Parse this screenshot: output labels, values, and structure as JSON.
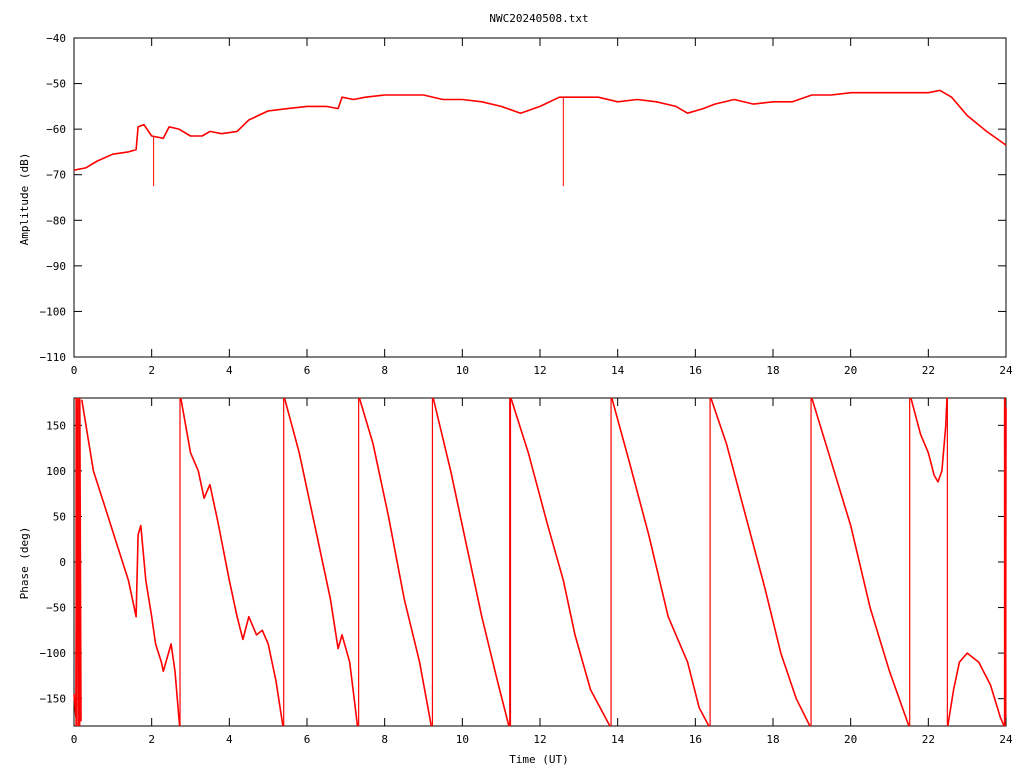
{
  "title": "NWC20240508.txt",
  "colors": {
    "trace": "#ff0000",
    "axis": "#000000",
    "background": "#ffffff"
  },
  "chart_data": [
    {
      "type": "line",
      "ylabel": "Amplitude (dB)",
      "xlabel": "",
      "xlim": [
        0,
        24
      ],
      "ylim": [
        -110,
        -40
      ],
      "xticks": [
        0,
        2,
        4,
        6,
        8,
        10,
        12,
        14,
        16,
        18,
        20,
        22,
        24
      ],
      "yticks": [
        -110,
        -100,
        -90,
        -80,
        -70,
        -60,
        -50,
        -40
      ],
      "grid": false,
      "series": [
        {
          "x": [
            0,
            0.3,
            0.6,
            1.0,
            1.4,
            1.6,
            1.65,
            1.8,
            2.0,
            2.3,
            2.45,
            2.7,
            3.0,
            3.3,
            3.5,
            3.8,
            4.2,
            4.5,
            5.0,
            5.5,
            6.0,
            6.5,
            6.8,
            6.9,
            7.2,
            7.5,
            8.0,
            8.5,
            9.0,
            9.5,
            10.0,
            10.5,
            11.0,
            11.5,
            12.0,
            12.5,
            13.0,
            13.5,
            14.0,
            14.5,
            15.0,
            15.5,
            15.8,
            16.2,
            16.5,
            17.0,
            17.5,
            18.0,
            18.5,
            19.0,
            19.5,
            20.0,
            20.5,
            21.0,
            21.5,
            22.0,
            22.3,
            22.6,
            23.0,
            23.5,
            24.0
          ],
          "values": [
            -69,
            -68.5,
            -67,
            -65.5,
            -65,
            -64.5,
            -59.5,
            -59,
            -61.5,
            -62,
            -59.5,
            -60,
            -61.5,
            -61.5,
            -60.5,
            -61,
            -60.5,
            -58,
            -56,
            -55.5,
            -55,
            -55,
            -55.5,
            -53,
            -53.5,
            -53,
            -52.5,
            -52.5,
            -52.5,
            -53.5,
            -53.5,
            -54,
            -55,
            -56.5,
            -55,
            -53,
            -53,
            -53,
            -54,
            -53.5,
            -54,
            -55,
            -56.5,
            -55.5,
            -54.5,
            -53.5,
            -54.5,
            -54,
            -54,
            -52.5,
            -52.5,
            -52,
            -52,
            -52,
            -52,
            -52,
            -51.5,
            -53,
            -57,
            -60.5,
            -63.5
          ],
          "spikes": [
            {
              "x": 2.05,
              "min": -72.5
            },
            {
              "x": 12.6,
              "min": -72.5
            }
          ]
        }
      ]
    },
    {
      "type": "line",
      "ylabel": "Phase (deg)",
      "xlabel": "Time (UT)",
      "xlim": [
        0,
        24
      ],
      "ylim": [
        -180,
        180
      ],
      "xticks": [
        0,
        2,
        4,
        6,
        8,
        10,
        12,
        14,
        16,
        18,
        20,
        22,
        24
      ],
      "yticks": [
        -150,
        -100,
        -50,
        0,
        50,
        100,
        150
      ],
      "grid": false,
      "series": [
        {
          "segments": [
            [
              [
                0,
                -145
              ],
              [
                0.05,
                -170
              ],
              [
                0.08,
                178
              ],
              [
                0.12,
                -178
              ],
              [
                0.15,
                178
              ],
              [
                0.18,
                -175
              ]
            ],
            [
              [
                0.2,
                178
              ],
              [
                0.5,
                100
              ],
              [
                0.8,
                60
              ],
              [
                1.1,
                20
              ],
              [
                1.4,
                -20
              ],
              [
                1.55,
                -50
              ],
              [
                1.6,
                -60
              ],
              [
                1.65,
                30
              ],
              [
                1.72,
                40
              ],
              [
                1.85,
                -20
              ],
              [
                2.0,
                -60
              ],
              [
                2.1,
                -90
              ],
              [
                2.25,
                -110
              ],
              [
                2.3,
                -120
              ],
              [
                2.5,
                -90
              ],
              [
                2.6,
                -120
              ],
              [
                2.72,
                -180
              ]
            ],
            [
              [
                2.75,
                180
              ],
              [
                3.0,
                120
              ],
              [
                3.2,
                100
              ],
              [
                3.35,
                70
              ],
              [
                3.5,
                85
              ],
              [
                3.7,
                45
              ],
              [
                4.0,
                -20
              ],
              [
                4.2,
                -60
              ],
              [
                4.35,
                -85
              ],
              [
                4.5,
                -60
              ],
              [
                4.7,
                -80
              ],
              [
                4.85,
                -75
              ],
              [
                5.0,
                -90
              ],
              [
                5.2,
                -130
              ],
              [
                5.38,
                -180
              ]
            ],
            [
              [
                5.42,
                180
              ],
              [
                5.8,
                120
              ],
              [
                6.2,
                40
              ],
              [
                6.6,
                -40
              ],
              [
                6.8,
                -95
              ],
              [
                6.9,
                -80
              ],
              [
                7.1,
                -110
              ],
              [
                7.3,
                -180
              ]
            ],
            [
              [
                7.35,
                180
              ],
              [
                7.7,
                130
              ],
              [
                8.1,
                50
              ],
              [
                8.5,
                -40
              ],
              [
                8.9,
                -110
              ],
              [
                9.2,
                -180
              ]
            ],
            [
              [
                9.25,
                180
              ],
              [
                9.7,
                100
              ],
              [
                10.1,
                20
              ],
              [
                10.5,
                -60
              ],
              [
                10.9,
                -130
              ],
              [
                11.2,
                -180
              ]
            ],
            [
              [
                11.25,
                180
              ],
              [
                11.7,
                120
              ],
              [
                12.2,
                40
              ],
              [
                12.6,
                -20
              ],
              [
                12.9,
                -80
              ],
              [
                13.3,
                -140
              ],
              [
                13.8,
                -180
              ]
            ],
            [
              [
                13.85,
                180
              ],
              [
                14.3,
                110
              ],
              [
                14.8,
                30
              ],
              [
                15.3,
                -60
              ],
              [
                15.8,
                -110
              ],
              [
                16.1,
                -160
              ],
              [
                16.35,
                -180
              ]
            ],
            [
              [
                16.4,
                180
              ],
              [
                16.8,
                130
              ],
              [
                17.3,
                50
              ],
              [
                17.8,
                -30
              ],
              [
                18.2,
                -100
              ],
              [
                18.6,
                -150
              ],
              [
                18.95,
                -180
              ]
            ],
            [
              [
                19.0,
                180
              ],
              [
                19.5,
                110
              ],
              [
                20.0,
                40
              ],
              [
                20.5,
                -50
              ],
              [
                21.0,
                -120
              ],
              [
                21.5,
                -180
              ]
            ],
            [
              [
                21.55,
                180
              ],
              [
                21.8,
                140
              ],
              [
                22.0,
                120
              ],
              [
                22.15,
                95
              ],
              [
                22.25,
                88
              ],
              [
                22.35,
                100
              ],
              [
                22.45,
                150
              ],
              [
                22.48,
                180
              ]
            ],
            [
              [
                22.5,
                -180
              ],
              [
                22.65,
                -140
              ],
              [
                22.8,
                -110
              ],
              [
                23.0,
                -100
              ],
              [
                23.3,
                -110
              ],
              [
                23.6,
                -135
              ],
              [
                23.85,
                -170
              ],
              [
                23.95,
                -180
              ]
            ],
            [
              [
                23.97,
                180
              ],
              [
                23.99,
                -170
              ],
              [
                24.0,
                170
              ]
            ]
          ],
          "verticals": [
            0.05,
            0.08,
            0.12,
            0.15,
            2.73,
            5.4,
            7.33,
            9.23,
            11.22,
            11.24,
            13.83,
            16.38,
            18.98,
            21.52,
            22.49,
            23.96,
            23.98
          ]
        }
      ]
    }
  ]
}
